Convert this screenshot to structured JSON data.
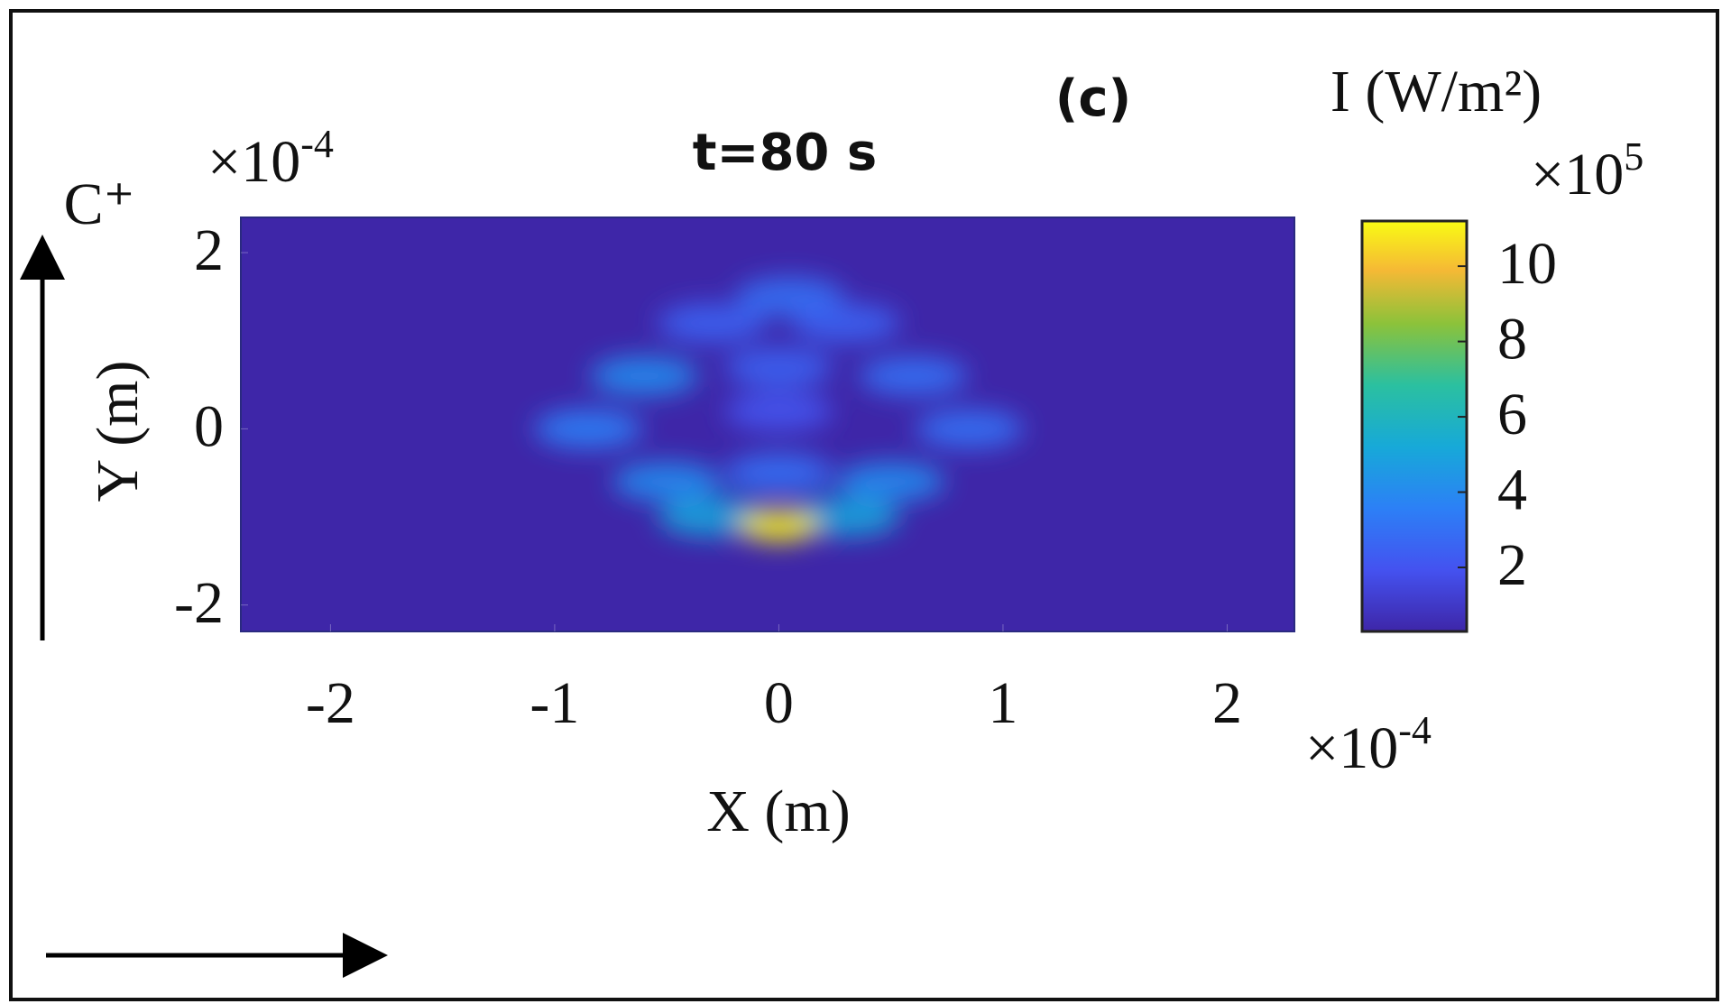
{
  "chart_data": {
    "type": "heatmap",
    "title": "t=80 s",
    "panel_label": "(c)",
    "x_label": "X (m)",
    "y_label": "Y (m)",
    "side_label": "C⁺",
    "xlim": [
      -2.4,
      2.3
    ],
    "ylim": [
      -2.3,
      2.4
    ],
    "xticks": [
      -2,
      -1,
      0,
      1,
      2
    ],
    "yticks": [
      -2,
      0,
      2
    ],
    "x_multiplier": {
      "base": "×10",
      "exponent": "-4"
    },
    "y_multiplier": {
      "base": "×10",
      "exponent": "-4"
    },
    "colorbar": {
      "label": "I (W/m²)",
      "multiplier": {
        "base": "×10",
        "exponent": "5"
      },
      "clim": [
        0.3,
        11.2
      ],
      "ticks": [
        2,
        4,
        6,
        8,
        10
      ],
      "colormap": "parula"
    },
    "blobs": {
      "x": [
        -0.85,
        0.85,
        -0.6,
        0.6,
        -0.5,
        0.5,
        0,
        0.05,
        -0.3,
        0.3,
        0,
        0,
        -0.3,
        0.3,
        0
      ],
      "y": [
        0,
        0,
        0.6,
        0.6,
        -0.6,
        -0.6,
        0.7,
        1.5,
        1.2,
        1.2,
        -0.5,
        0.2,
        -1.0,
        -1.0,
        -1.1
      ],
      "values": [
        3.5,
        3,
        4,
        3,
        4,
        4,
        2.5,
        3,
        2.5,
        2.5,
        3,
        2,
        5,
        5,
        11
      ]
    }
  }
}
